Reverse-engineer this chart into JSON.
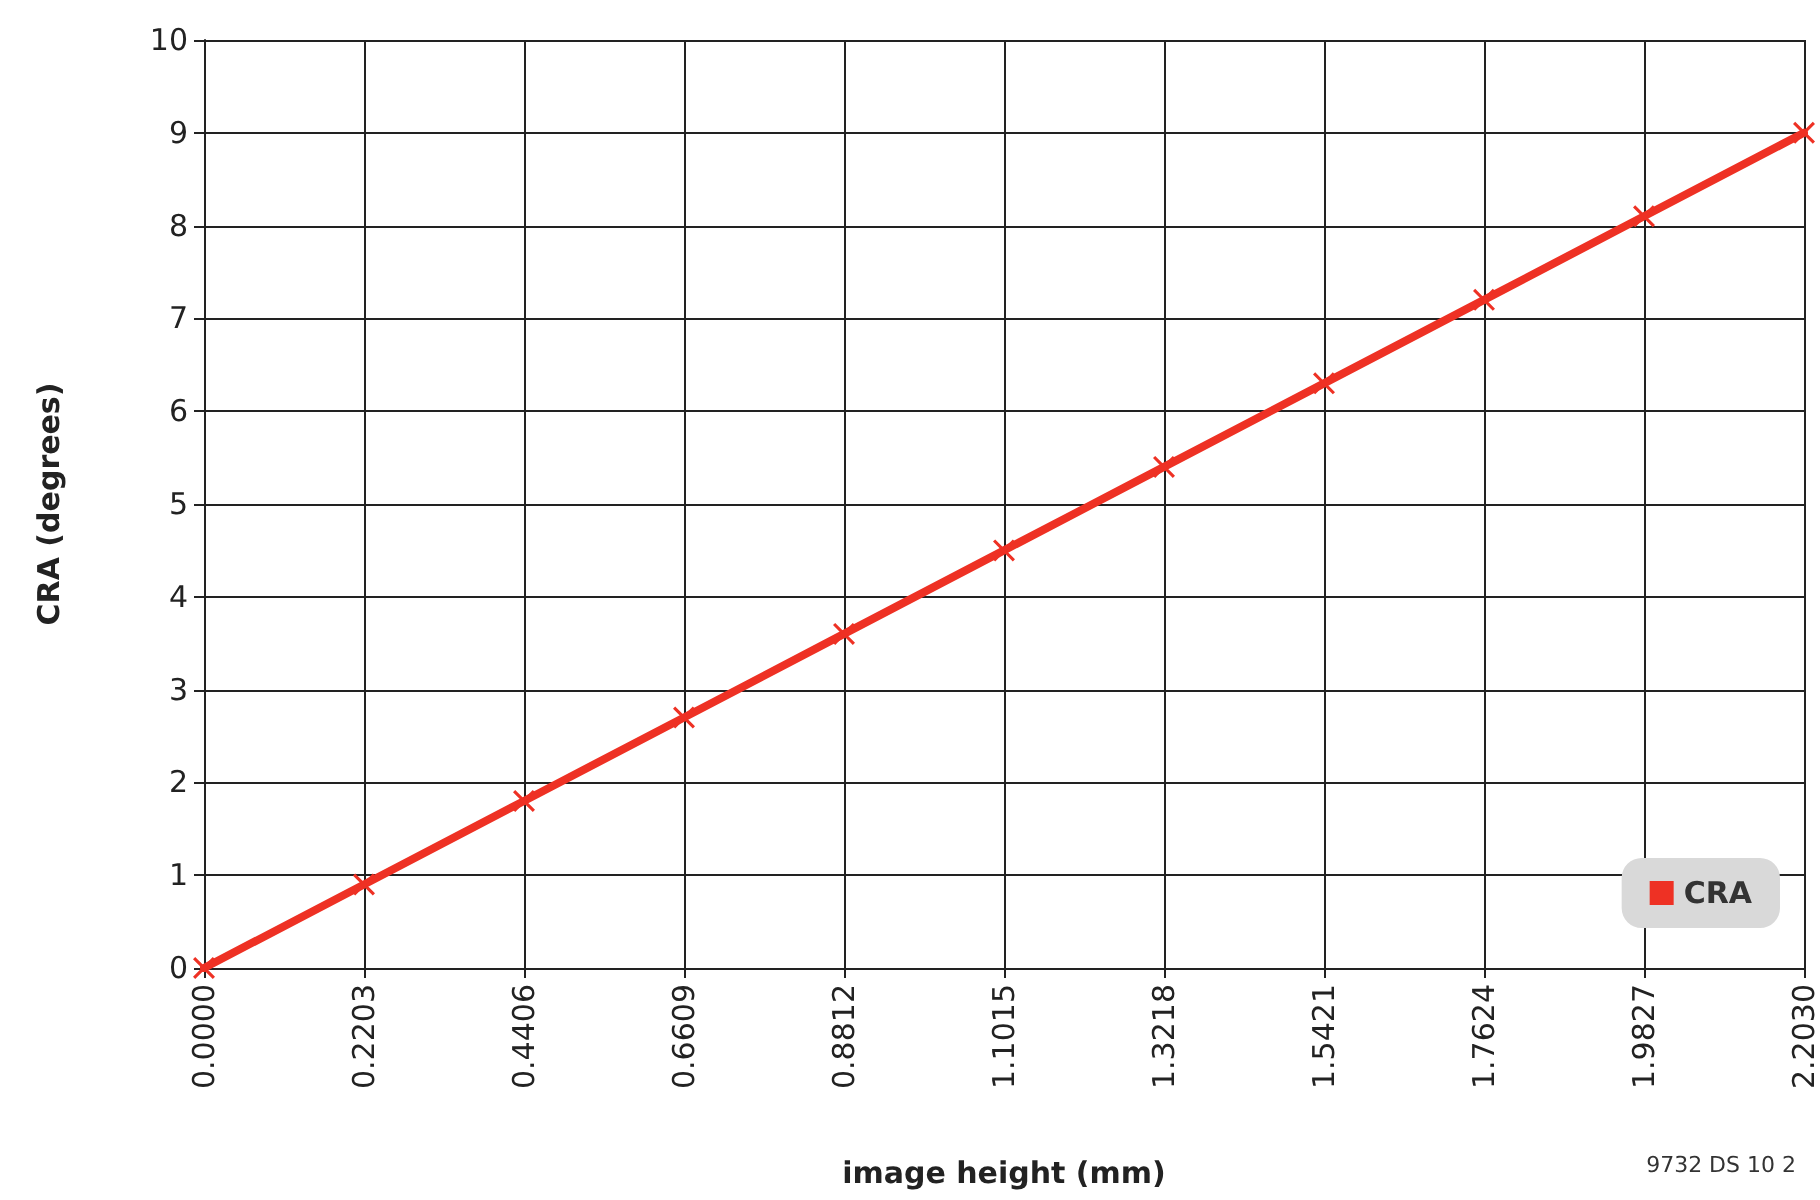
{
  "chart_data": {
    "type": "line",
    "xlabel": "image height (mm)",
    "ylabel": "CRA (degrees)",
    "x": [
      0,
      0.2203,
      0.4406,
      0.6609,
      0.8812,
      1.1015,
      1.3218,
      1.5421,
      1.7624,
      1.9827,
      2.203
    ],
    "series": [
      {
        "name": "CRA",
        "color": "#ee3124",
        "values": [
          0,
          0.9,
          1.8,
          2.7,
          3.6,
          4.5,
          5.4,
          6.3,
          7.2,
          8.1,
          9.0
        ]
      }
    ],
    "xlim": [
      0,
      2.203
    ],
    "xticks": [
      {
        "value": 0,
        "label": "0.0000"
      },
      {
        "value": 0.2203,
        "label": "0.2203"
      },
      {
        "value": 0.4406,
        "label": "0.4406"
      },
      {
        "value": 0.6609,
        "label": "0.6609"
      },
      {
        "value": 0.8812,
        "label": "0.8812"
      },
      {
        "value": 1.1015,
        "label": "1.1015"
      },
      {
        "value": 1.3218,
        "label": "1.3218"
      },
      {
        "value": 1.5421,
        "label": "1.5421"
      },
      {
        "value": 1.7624,
        "label": "1.7624"
      },
      {
        "value": 1.9827,
        "label": "1.9827"
      },
      {
        "value": 2.203,
        "label": "2.2030"
      }
    ],
    "ylim": [
      0,
      10
    ],
    "yticks": [
      0,
      1,
      2,
      3,
      4,
      5,
      6,
      7,
      8,
      9,
      10
    ],
    "grid": true,
    "legend": "bottom right",
    "marker": "cross",
    "line_style": "solid",
    "annotations": [
      "9732 DS 10 2"
    ]
  }
}
